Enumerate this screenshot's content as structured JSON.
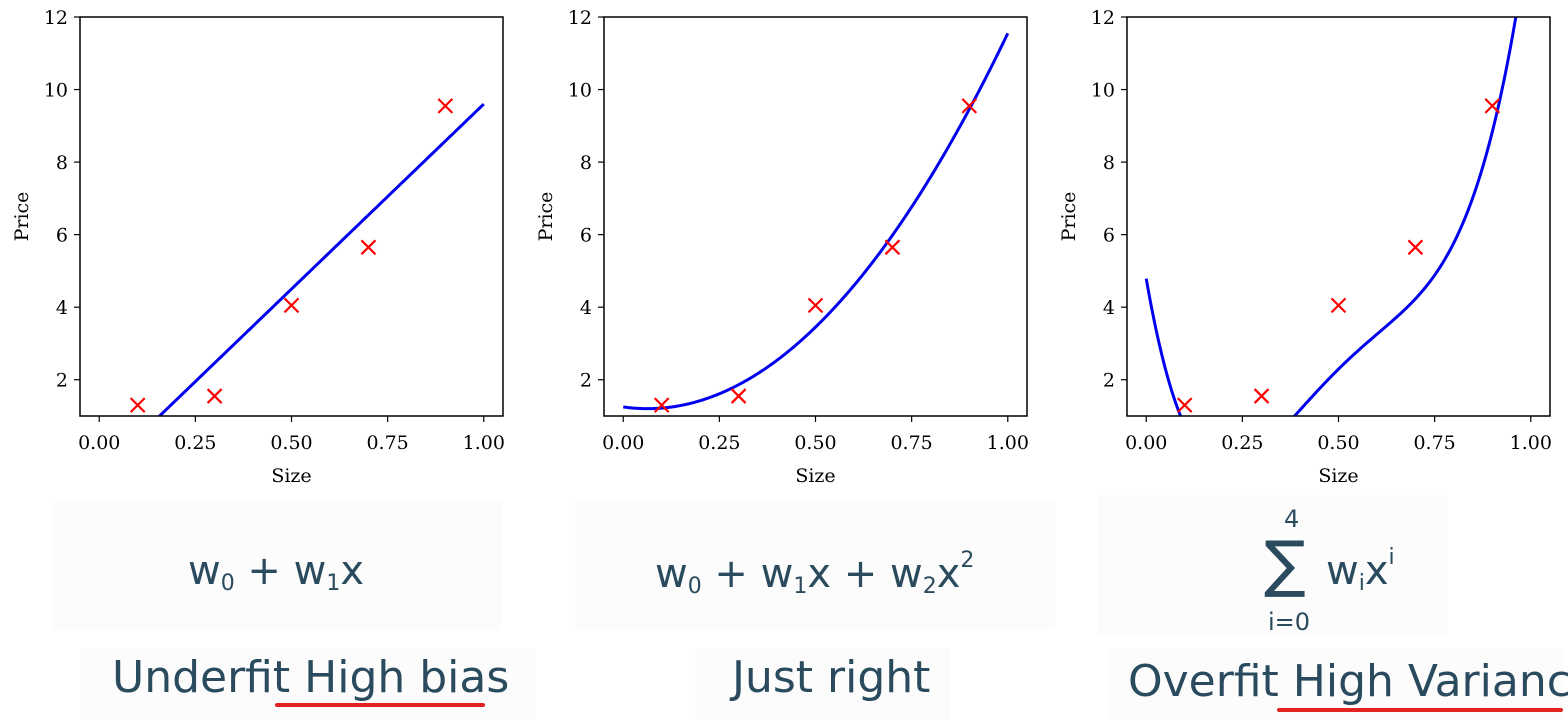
{
  "chart_data": [
    {
      "type": "scatter",
      "xlabel": "Size",
      "ylabel": "Price",
      "xlim": [
        -0.05,
        1.05
      ],
      "ylim": [
        1,
        12
      ],
      "xticks": [
        "0.00",
        "0.25",
        "0.50",
        "0.75",
        "1.00"
      ],
      "yticks": [
        "2",
        "4",
        "6",
        "8",
        "10",
        "12"
      ],
      "points": {
        "x": [
          0.1,
          0.3,
          0.5,
          0.7,
          0.9
        ],
        "y": [
          1.3,
          1.55,
          4.05,
          5.65,
          9.55
        ],
        "color": "#ff0000",
        "marker": "x"
      },
      "fit": {
        "degree": 1,
        "coeffs": [
          -0.6,
          10.2
        ],
        "color": "#0000ee"
      },
      "grid": false
    },
    {
      "type": "scatter",
      "xlabel": "Size",
      "ylabel": "Price",
      "xlim": [
        -0.05,
        1.05
      ],
      "ylim": [
        1,
        12
      ],
      "xticks": [
        "0.00",
        "0.25",
        "0.50",
        "0.75",
        "1.00"
      ],
      "yticks": [
        "2",
        "4",
        "6",
        "8",
        "10",
        "12"
      ],
      "points": {
        "x": [
          0.1,
          0.3,
          0.5,
          0.7,
          0.9
        ],
        "y": [
          1.3,
          1.55,
          4.05,
          5.65,
          9.55
        ],
        "color": "#ff0000",
        "marker": "x"
      },
      "fit": {
        "degree": 2,
        "coeffs": [
          1.25,
          -1.5,
          11.8
        ],
        "color": "#0000ee"
      },
      "grid": false
    },
    {
      "type": "scatter",
      "xlabel": "Size",
      "ylabel": "Price",
      "xlim": [
        -0.05,
        1.05
      ],
      "ylim": [
        1,
        12
      ],
      "xticks": [
        "0.00",
        "0.25",
        "0.50",
        "0.75",
        "1.00"
      ],
      "yticks": [
        "2",
        "4",
        "6",
        "8",
        "10",
        "12"
      ],
      "points": {
        "x": [
          0.1,
          0.3,
          0.5,
          0.7,
          0.9
        ],
        "y": [
          1.3,
          1.55,
          4.05,
          5.65,
          9.55
        ],
        "color": "#ff0000",
        "marker": "x"
      },
      "fit": {
        "degree": 4,
        "coeffs": [
          4.7875,
          -60.677,
          231.56,
          -319.79,
          158.85
        ],
        "color": "#0000ee"
      },
      "grid": false
    }
  ],
  "labels": {
    "caption_1_plain": "Underfit ",
    "caption_1_emph": "High bias",
    "caption_2": "Just right",
    "caption_3_plain": "Overfit ",
    "caption_3_emph": "High Variance",
    "underline_color": "#e32222"
  },
  "formulas": {
    "f1": {
      "w": "w",
      "s0": "0",
      "plus": " + ",
      "s1": "1",
      "x": "x"
    },
    "f2": {
      "w": "w",
      "s0": "0",
      "plus": " + ",
      "s1": "1",
      "x": "x",
      "s2": "2",
      "p2": "2"
    },
    "f3": {
      "sum": "∑",
      "upper": "4",
      "lower": "i=0",
      "w": "w",
      "i": "i",
      "x": "x",
      "p": "i"
    }
  }
}
